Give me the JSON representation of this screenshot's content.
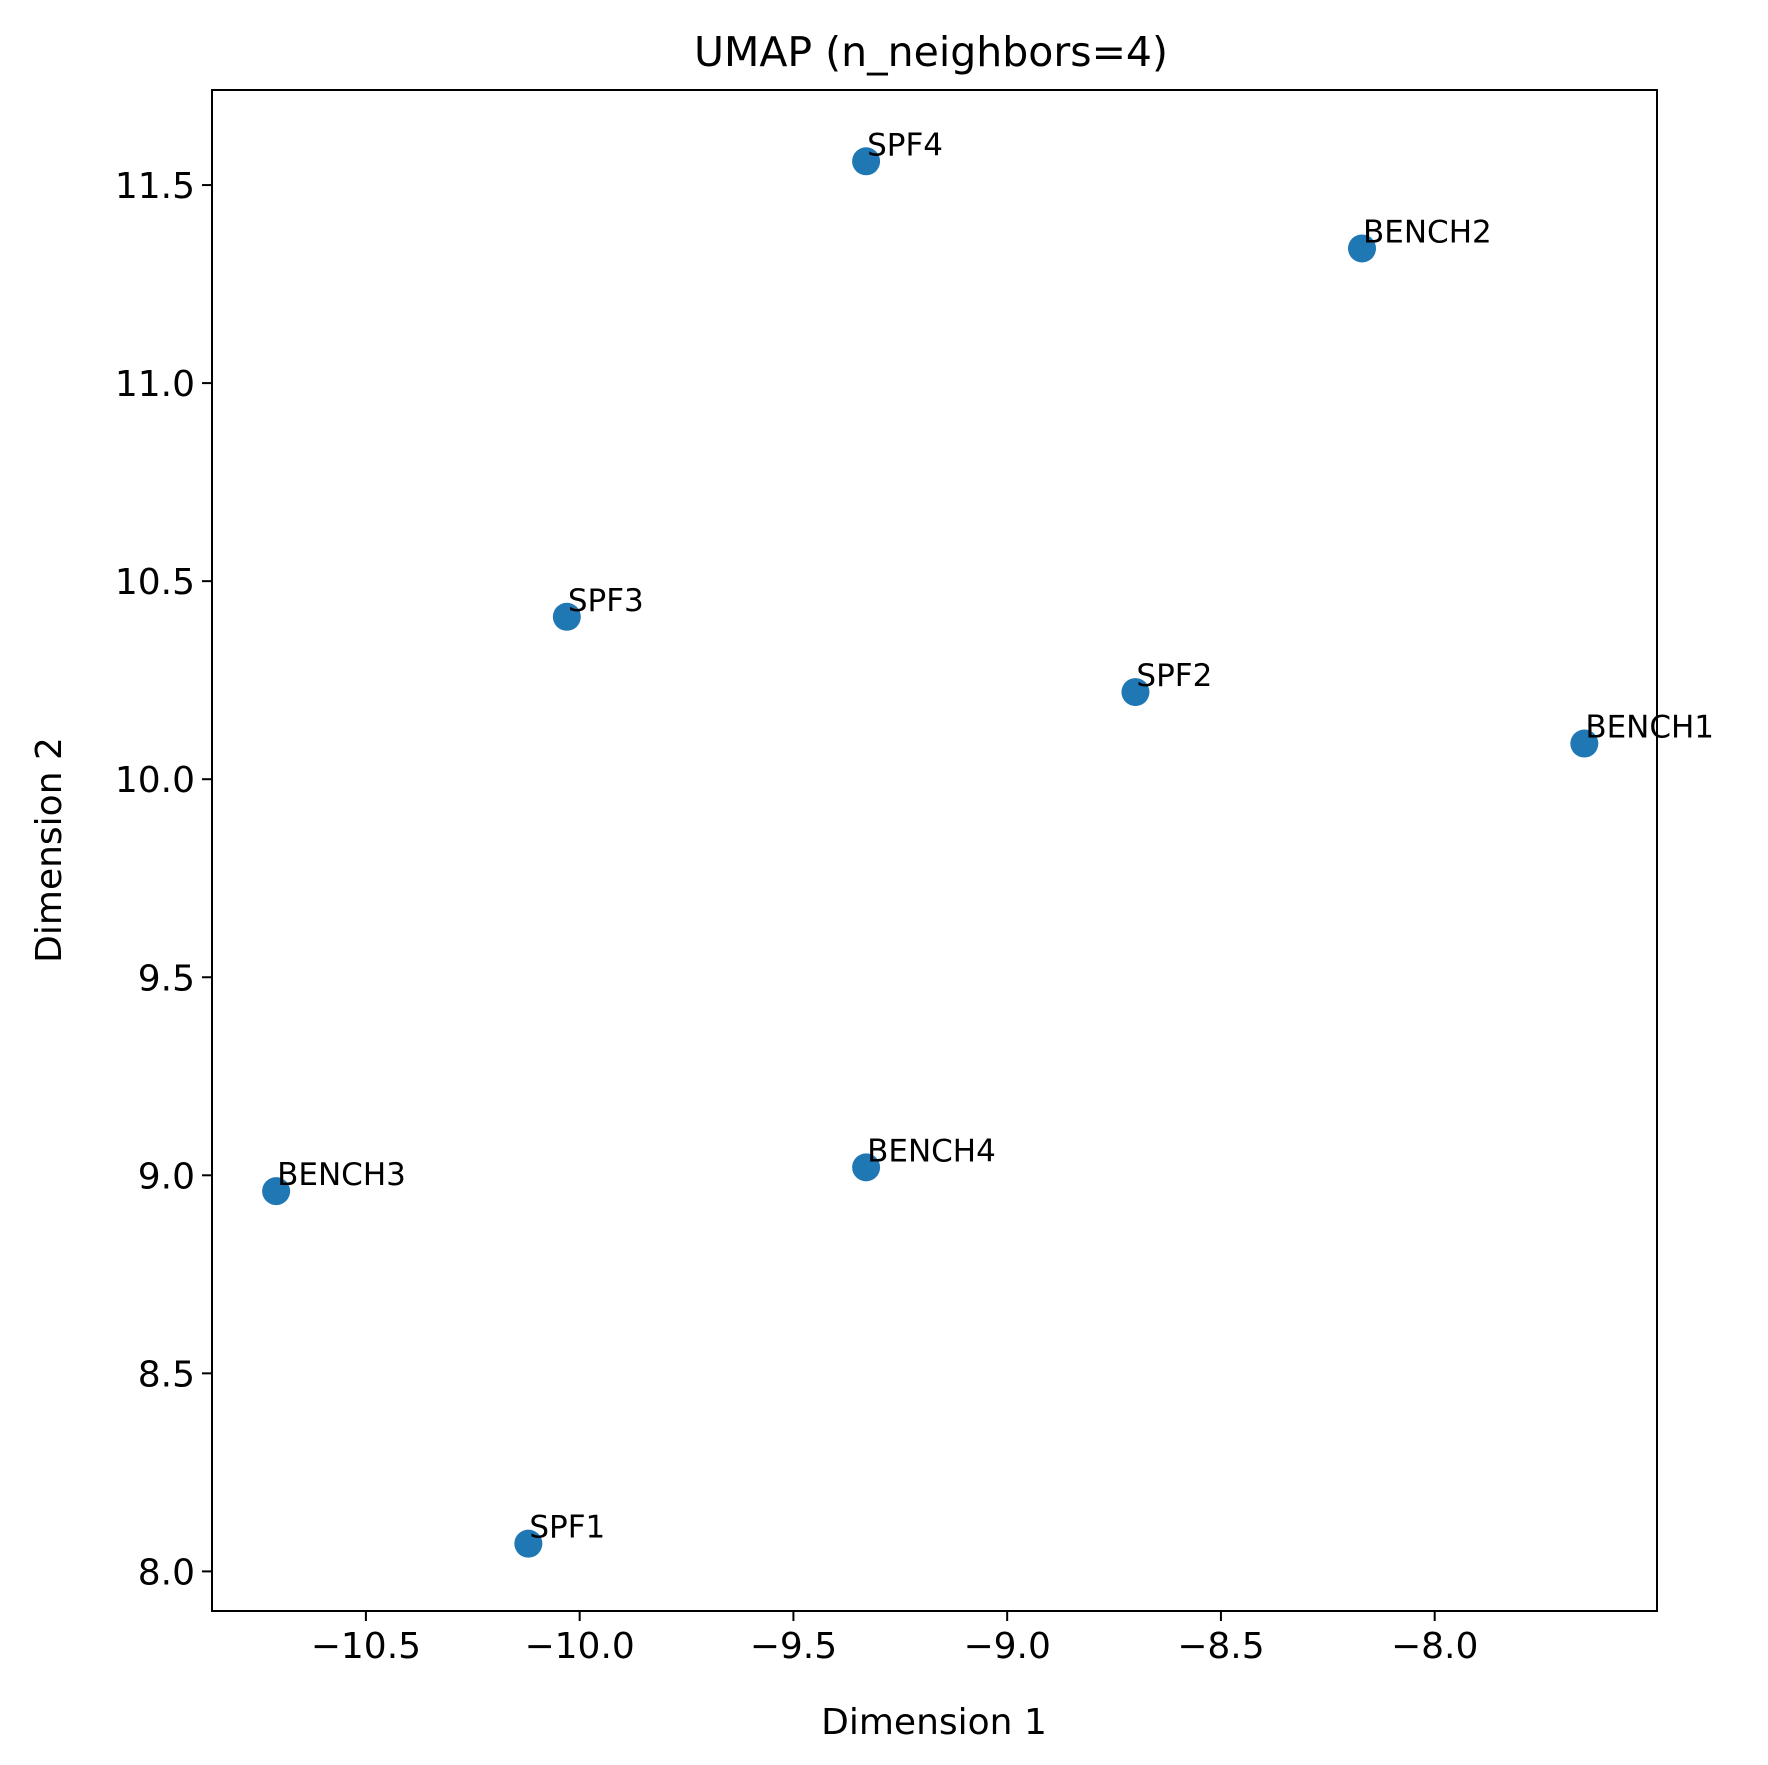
{
  "chart_data": {
    "type": "scatter",
    "title": "UMAP (n_neighbors=4)",
    "xlabel": "Dimension 1",
    "ylabel": "Dimension 2",
    "xlim": [
      -10.86,
      -7.48
    ],
    "ylim": [
      7.9,
      11.74
    ],
    "xticks": [
      -10.5,
      -10.0,
      -9.5,
      -9.0,
      -8.5,
      -8.0
    ],
    "xtick_labels": [
      "−10.5",
      "−10.0",
      "−9.5",
      "−9.0",
      "−8.5",
      "−8.0"
    ],
    "yticks": [
      8.0,
      8.5,
      9.0,
      9.5,
      10.0,
      10.5,
      11.0,
      11.5
    ],
    "ytick_labels": [
      "8.0",
      "8.5",
      "9.0",
      "9.5",
      "10.0",
      "10.5",
      "11.0",
      "11.5"
    ],
    "grid": false,
    "color": "#1f77b4",
    "points": [
      {
        "label": "SPF4",
        "x": -9.33,
        "y": 11.56
      },
      {
        "label": "BENCH2",
        "x": -8.17,
        "y": 11.34
      },
      {
        "label": "SPF3",
        "x": -10.03,
        "y": 10.41
      },
      {
        "label": "SPF2",
        "x": -8.7,
        "y": 10.22
      },
      {
        "label": "BENCH1",
        "x": -7.65,
        "y": 10.09
      },
      {
        "label": "BENCH4",
        "x": -9.33,
        "y": 9.02
      },
      {
        "label": "BENCH3",
        "x": -10.71,
        "y": 8.96
      },
      {
        "label": "SPF1",
        "x": -10.12,
        "y": 8.07
      }
    ]
  }
}
